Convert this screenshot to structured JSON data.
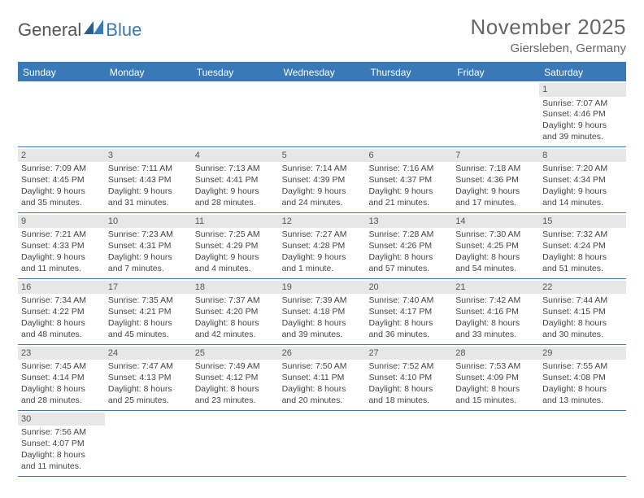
{
  "header": {
    "logo_part1": "General",
    "logo_part2": "Blue",
    "month_title": "November 2025",
    "location": "Giersleben, Germany"
  },
  "colors": {
    "header_bar": "#3a79b7",
    "daynum_bg": "#e7e7e7",
    "text": "#444444",
    "title_text": "#666666"
  },
  "weekdays": [
    "Sunday",
    "Monday",
    "Tuesday",
    "Wednesday",
    "Thursday",
    "Friday",
    "Saturday"
  ],
  "weeks": [
    [
      null,
      null,
      null,
      null,
      null,
      null,
      {
        "n": "1",
        "sunrise": "Sunrise: 7:07 AM",
        "sunset": "Sunset: 4:46 PM",
        "dl1": "Daylight: 9 hours",
        "dl2": "and 39 minutes."
      }
    ],
    [
      {
        "n": "2",
        "sunrise": "Sunrise: 7:09 AM",
        "sunset": "Sunset: 4:45 PM",
        "dl1": "Daylight: 9 hours",
        "dl2": "and 35 minutes."
      },
      {
        "n": "3",
        "sunrise": "Sunrise: 7:11 AM",
        "sunset": "Sunset: 4:43 PM",
        "dl1": "Daylight: 9 hours",
        "dl2": "and 31 minutes."
      },
      {
        "n": "4",
        "sunrise": "Sunrise: 7:13 AM",
        "sunset": "Sunset: 4:41 PM",
        "dl1": "Daylight: 9 hours",
        "dl2": "and 28 minutes."
      },
      {
        "n": "5",
        "sunrise": "Sunrise: 7:14 AM",
        "sunset": "Sunset: 4:39 PM",
        "dl1": "Daylight: 9 hours",
        "dl2": "and 24 minutes."
      },
      {
        "n": "6",
        "sunrise": "Sunrise: 7:16 AM",
        "sunset": "Sunset: 4:37 PM",
        "dl1": "Daylight: 9 hours",
        "dl2": "and 21 minutes."
      },
      {
        "n": "7",
        "sunrise": "Sunrise: 7:18 AM",
        "sunset": "Sunset: 4:36 PM",
        "dl1": "Daylight: 9 hours",
        "dl2": "and 17 minutes."
      },
      {
        "n": "8",
        "sunrise": "Sunrise: 7:20 AM",
        "sunset": "Sunset: 4:34 PM",
        "dl1": "Daylight: 9 hours",
        "dl2": "and 14 minutes."
      }
    ],
    [
      {
        "n": "9",
        "sunrise": "Sunrise: 7:21 AM",
        "sunset": "Sunset: 4:33 PM",
        "dl1": "Daylight: 9 hours",
        "dl2": "and 11 minutes."
      },
      {
        "n": "10",
        "sunrise": "Sunrise: 7:23 AM",
        "sunset": "Sunset: 4:31 PM",
        "dl1": "Daylight: 9 hours",
        "dl2": "and 7 minutes."
      },
      {
        "n": "11",
        "sunrise": "Sunrise: 7:25 AM",
        "sunset": "Sunset: 4:29 PM",
        "dl1": "Daylight: 9 hours",
        "dl2": "and 4 minutes."
      },
      {
        "n": "12",
        "sunrise": "Sunrise: 7:27 AM",
        "sunset": "Sunset: 4:28 PM",
        "dl1": "Daylight: 9 hours",
        "dl2": "and 1 minute."
      },
      {
        "n": "13",
        "sunrise": "Sunrise: 7:28 AM",
        "sunset": "Sunset: 4:26 PM",
        "dl1": "Daylight: 8 hours",
        "dl2": "and 57 minutes."
      },
      {
        "n": "14",
        "sunrise": "Sunrise: 7:30 AM",
        "sunset": "Sunset: 4:25 PM",
        "dl1": "Daylight: 8 hours",
        "dl2": "and 54 minutes."
      },
      {
        "n": "15",
        "sunrise": "Sunrise: 7:32 AM",
        "sunset": "Sunset: 4:24 PM",
        "dl1": "Daylight: 8 hours",
        "dl2": "and 51 minutes."
      }
    ],
    [
      {
        "n": "16",
        "sunrise": "Sunrise: 7:34 AM",
        "sunset": "Sunset: 4:22 PM",
        "dl1": "Daylight: 8 hours",
        "dl2": "and 48 minutes."
      },
      {
        "n": "17",
        "sunrise": "Sunrise: 7:35 AM",
        "sunset": "Sunset: 4:21 PM",
        "dl1": "Daylight: 8 hours",
        "dl2": "and 45 minutes."
      },
      {
        "n": "18",
        "sunrise": "Sunrise: 7:37 AM",
        "sunset": "Sunset: 4:20 PM",
        "dl1": "Daylight: 8 hours",
        "dl2": "and 42 minutes."
      },
      {
        "n": "19",
        "sunrise": "Sunrise: 7:39 AM",
        "sunset": "Sunset: 4:18 PM",
        "dl1": "Daylight: 8 hours",
        "dl2": "and 39 minutes."
      },
      {
        "n": "20",
        "sunrise": "Sunrise: 7:40 AM",
        "sunset": "Sunset: 4:17 PM",
        "dl1": "Daylight: 8 hours",
        "dl2": "and 36 minutes."
      },
      {
        "n": "21",
        "sunrise": "Sunrise: 7:42 AM",
        "sunset": "Sunset: 4:16 PM",
        "dl1": "Daylight: 8 hours",
        "dl2": "and 33 minutes."
      },
      {
        "n": "22",
        "sunrise": "Sunrise: 7:44 AM",
        "sunset": "Sunset: 4:15 PM",
        "dl1": "Daylight: 8 hours",
        "dl2": "and 30 minutes."
      }
    ],
    [
      {
        "n": "23",
        "sunrise": "Sunrise: 7:45 AM",
        "sunset": "Sunset: 4:14 PM",
        "dl1": "Daylight: 8 hours",
        "dl2": "and 28 minutes."
      },
      {
        "n": "24",
        "sunrise": "Sunrise: 7:47 AM",
        "sunset": "Sunset: 4:13 PM",
        "dl1": "Daylight: 8 hours",
        "dl2": "and 25 minutes."
      },
      {
        "n": "25",
        "sunrise": "Sunrise: 7:49 AM",
        "sunset": "Sunset: 4:12 PM",
        "dl1": "Daylight: 8 hours",
        "dl2": "and 23 minutes."
      },
      {
        "n": "26",
        "sunrise": "Sunrise: 7:50 AM",
        "sunset": "Sunset: 4:11 PM",
        "dl1": "Daylight: 8 hours",
        "dl2": "and 20 minutes."
      },
      {
        "n": "27",
        "sunrise": "Sunrise: 7:52 AM",
        "sunset": "Sunset: 4:10 PM",
        "dl1": "Daylight: 8 hours",
        "dl2": "and 18 minutes."
      },
      {
        "n": "28",
        "sunrise": "Sunrise: 7:53 AM",
        "sunset": "Sunset: 4:09 PM",
        "dl1": "Daylight: 8 hours",
        "dl2": "and 15 minutes."
      },
      {
        "n": "29",
        "sunrise": "Sunrise: 7:55 AM",
        "sunset": "Sunset: 4:08 PM",
        "dl1": "Daylight: 8 hours",
        "dl2": "and 13 minutes."
      }
    ],
    [
      {
        "n": "30",
        "sunrise": "Sunrise: 7:56 AM",
        "sunset": "Sunset: 4:07 PM",
        "dl1": "Daylight: 8 hours",
        "dl2": "and 11 minutes."
      },
      null,
      null,
      null,
      null,
      null,
      null
    ]
  ]
}
